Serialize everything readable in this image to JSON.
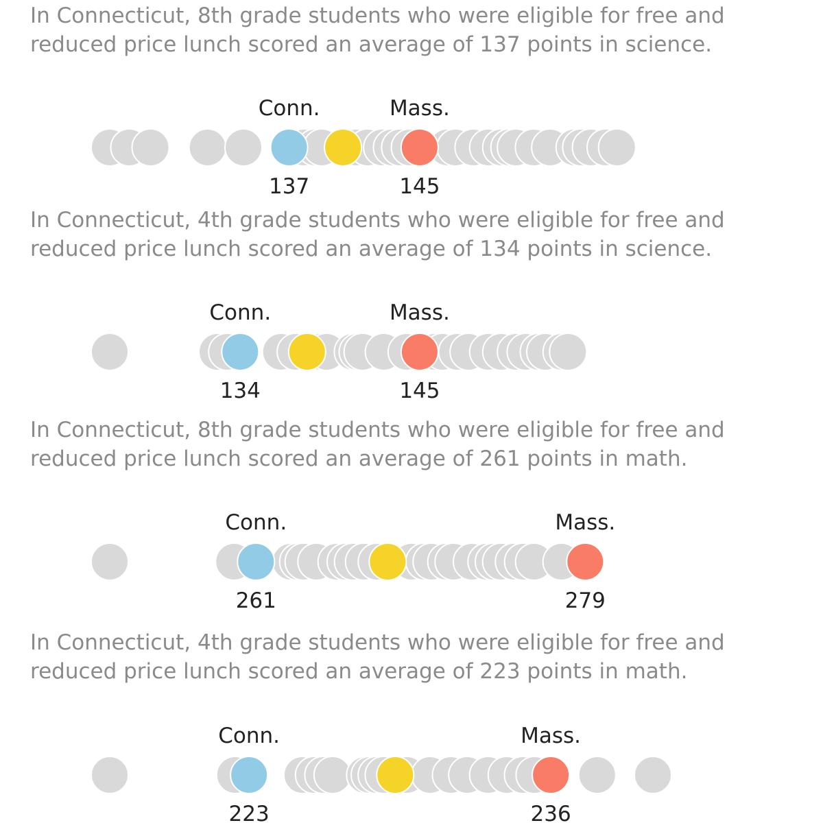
{
  "colors": {
    "others": "#d9d9d9",
    "conn": "#91cbe6",
    "mass": "#f97c66",
    "national": "#f5d328"
  },
  "chart_data": [
    {
      "type": "scatter",
      "caption": "In Connecticut, 8th grade students who were eligible for free and reduced price lunch scored an average of 137 points in science.",
      "highlight_names": {
        "conn": "Conn.",
        "mass": "Mass."
      },
      "highlight_labels": {
        "conn": "137",
        "mass": "145"
      },
      "domain": [
        126,
        163
      ],
      "values": {
        "conn": 137,
        "mass": 145,
        "national": 140.3
      },
      "others": [
        126,
        127.2,
        128.5,
        132,
        134.2,
        137.3,
        137.9,
        138.6,
        139,
        141.1,
        141.8,
        142.7,
        143.3,
        143.8,
        144.4,
        146.7,
        147.2,
        148.3,
        149.2,
        150,
        150.5,
        150.9,
        152,
        153,
        154.5,
        154.9,
        155.5,
        156.4,
        157.1
      ]
    },
    {
      "type": "scatter",
      "caption": "In Connecticut, 4th grade students who were eligible for free and reduced price lunch scored an average of 134 points in science.",
      "highlight_names": {
        "conn": "Conn.",
        "mass": "Mass."
      },
      "highlight_labels": {
        "conn": "134",
        "mass": "145"
      },
      "domain": [
        126,
        163
      ],
      "values": {
        "conn": 134,
        "mass": 145,
        "national": 138.1
      },
      "others": [
        126,
        132.6,
        133.2,
        136.5,
        137.4,
        138.3,
        138.9,
        139.3,
        140.9,
        141.2,
        141.5,
        142.8,
        144.2,
        145.9,
        146.4,
        147.3,
        148,
        149.2,
        150,
        150.9,
        151.5,
        152.3,
        152.7,
        153.7,
        154.1
      ]
    },
    {
      "type": "scatter",
      "caption": "In Connecticut, 8th grade students who were eligible for free and reduced price lunch scored an average of 261 points in math.",
      "highlight_names": {
        "conn": "Conn.",
        "mass": "Mass."
      },
      "highlight_labels": {
        "conn": "261",
        "mass": "279"
      },
      "domain": [
        253,
        286
      ],
      "values": {
        "conn": 261,
        "mass": 279,
        "national": 268.2
      },
      "others": [
        253,
        259.8,
        262.9,
        263.3,
        263.6,
        264.3,
        265.4,
        265.9,
        266.3,
        266.9,
        267.6,
        269.5,
        270.2,
        270.6,
        271.4,
        271.8,
        272.8,
        273.6,
        274,
        274.4,
        275.1,
        275.6,
        276.2,
        277.7
      ]
    },
    {
      "type": "scatter",
      "caption": "In Connecticut, 4th grade students who were eligible for free and reduced price lunch scored an average of 223 points in math.",
      "highlight_names": {
        "conn": "Conn.",
        "mass": "Mass."
      },
      "highlight_labels": {
        "conn": "223",
        "mass": "236"
      },
      "domain": [
        217,
        243
      ],
      "values": {
        "conn": 223,
        "mass": 236,
        "national": 229.3
      },
      "others": [
        217,
        222.4,
        225.3,
        225.8,
        226.2,
        226.6,
        228,
        228.2,
        228.5,
        228.8,
        229.8,
        230.8,
        231.7,
        232.4,
        233.3,
        234.1,
        234.8,
        235.3,
        238,
        240.4
      ]
    }
  ]
}
